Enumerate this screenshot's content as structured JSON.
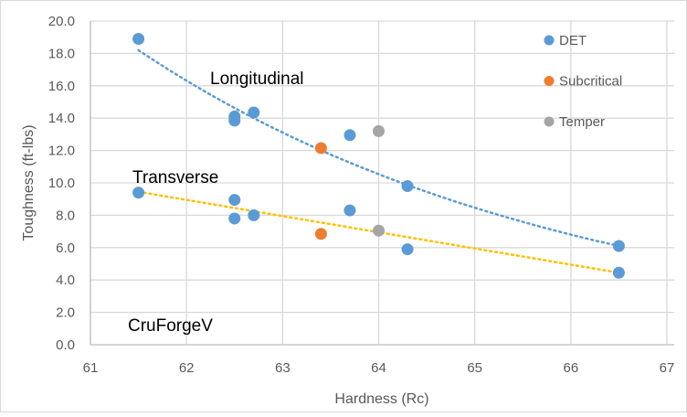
{
  "chart_data": {
    "type": "scatter",
    "title": "",
    "xlabel": "Hardness (Rc)",
    "ylabel": "Toughness (ft-lbs)",
    "xlim": [
      61,
      67
    ],
    "ylim": [
      0,
      20
    ],
    "xticks": [
      "61",
      "62",
      "63",
      "64",
      "65",
      "66",
      "67"
    ],
    "yticks": [
      "0.0",
      "2.0",
      "4.0",
      "6.0",
      "8.0",
      "10.0",
      "12.0",
      "14.0",
      "16.0",
      "18.0",
      "20.0"
    ],
    "grid": true,
    "legend_position": "top-right",
    "series": [
      {
        "name": "DET",
        "color": "#5B9BD5",
        "points": [
          [
            61.5,
            18.9
          ],
          [
            62.5,
            14.1
          ],
          [
            62.5,
            13.85
          ],
          [
            62.7,
            14.35
          ],
          [
            63.7,
            12.95
          ],
          [
            64.3,
            9.8
          ],
          [
            66.5,
            6.1
          ],
          [
            61.5,
            9.4
          ],
          [
            62.5,
            8.95
          ],
          [
            62.5,
            7.8
          ],
          [
            62.7,
            8.0
          ],
          [
            63.7,
            8.3
          ],
          [
            64.3,
            5.9
          ],
          [
            66.5,
            4.45
          ]
        ]
      },
      {
        "name": "Subcritical",
        "color": "#ED7D31",
        "points": [
          [
            63.4,
            12.15
          ],
          [
            63.4,
            6.85
          ]
        ]
      },
      {
        "name": "Temper",
        "color": "#A5A5A5",
        "points": [
          [
            64.0,
            13.2
          ],
          [
            64.0,
            7.05
          ]
        ]
      }
    ],
    "trendlines": [
      {
        "name": "Longitudinal trend",
        "type": "exponential",
        "color": "#5B9BD5",
        "from": [
          61.5,
          18.2
        ],
        "to": [
          66.5,
          6.1
        ]
      },
      {
        "name": "Transverse trend",
        "type": "linear",
        "color": "#FFC000",
        "from": [
          61.5,
          9.45
        ],
        "to": [
          66.5,
          4.45
        ]
      }
    ],
    "annotations": [
      "Longitudinal",
      "Transverse",
      "CruForgeV"
    ]
  }
}
